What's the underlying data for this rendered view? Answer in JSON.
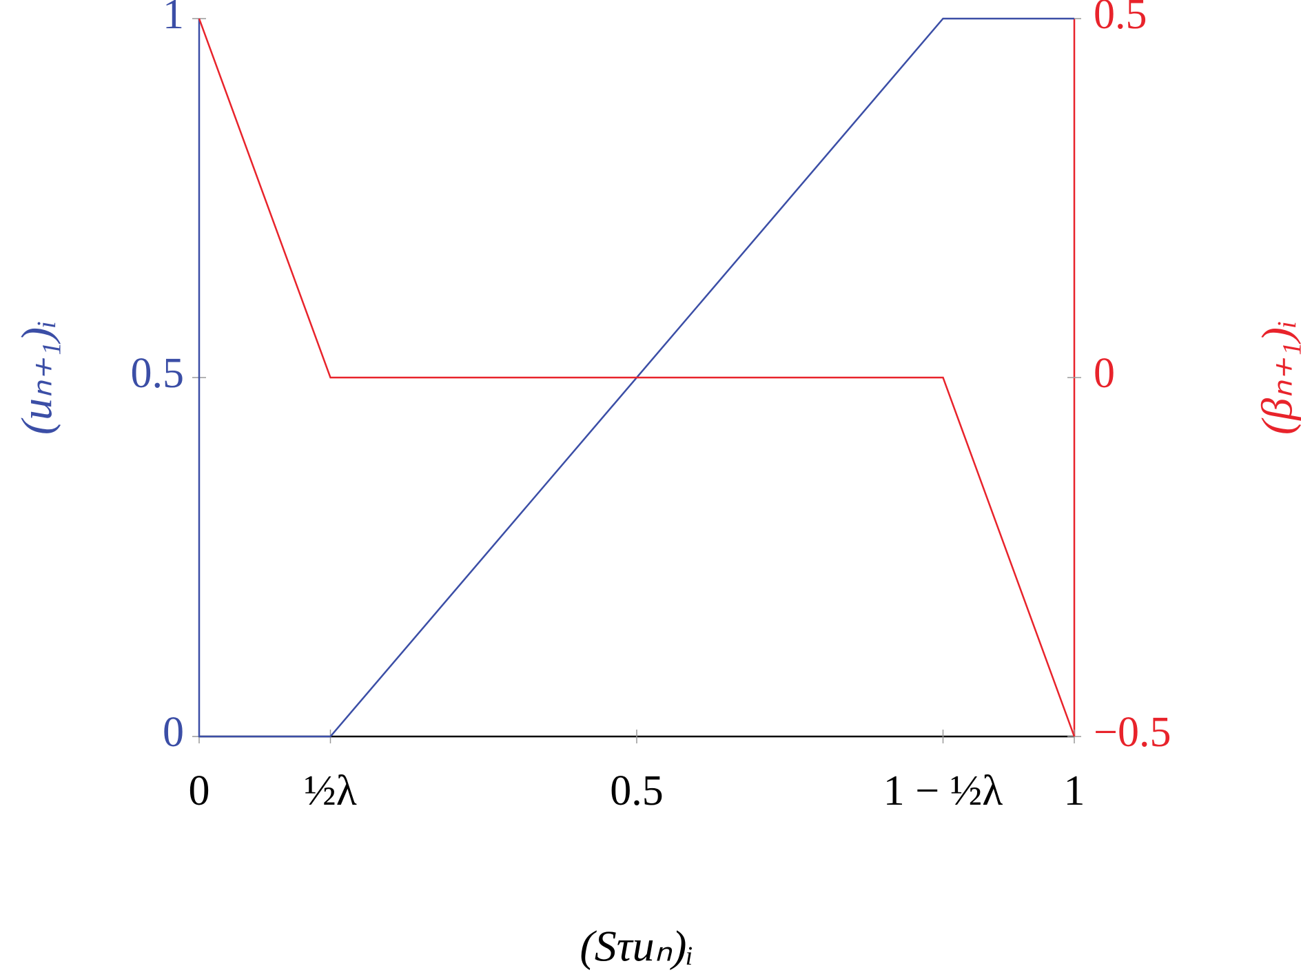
{
  "chart_data": {
    "type": "line",
    "xlabel": "(Sτuₙ)ᵢ",
    "ylabel": "(uₙ₊₁)ᵢ",
    "y2label": "(βₙ₊₁)ᵢ",
    "xlim": [
      0,
      1
    ],
    "xticks": [
      0,
      {
        "value": 0.15,
        "label": "½λ"
      },
      0.5,
      {
        "value": 0.85,
        "label": "1 − ½λ"
      },
      1
    ],
    "ylim": [
      0,
      1
    ],
    "yticks": [
      0,
      0.5,
      1
    ],
    "y2lim": [
      -0.5,
      0.5
    ],
    "y2ticks": [
      {
        "value": -0.5,
        "label": "−0.5"
      },
      0,
      0.5
    ],
    "series": [
      {
        "name": "(uₙ₊₁)ᵢ",
        "color": "#3b4ea6",
        "x": [
          0,
          0,
          0.15,
          0.85,
          1
        ],
        "values": [
          1,
          0,
          0,
          1,
          1
        ]
      },
      {
        "name": "(βₙ₊₁)ᵢ",
        "color": "#e8232b",
        "axis": "y2",
        "x": [
          0,
          0.15,
          0.85,
          1
        ],
        "values": [
          0.5,
          0,
          0,
          -0.5
        ]
      }
    ]
  }
}
